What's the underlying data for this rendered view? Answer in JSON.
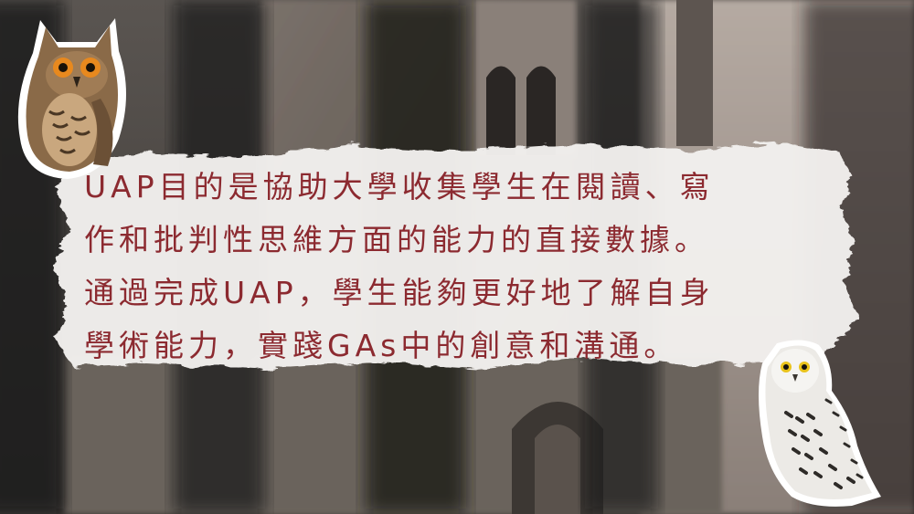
{
  "caption": {
    "lines": [
      "UAP目的是協助大學收集學生在閱讀、寫",
      "作和批判性思維方面的能力的直接數據。",
      "通過完成UAP，學生能夠更好地了解自身",
      "學術能力，實踐GAs中的創意和溝通。"
    ]
  },
  "colors": {
    "text": "#8c2a30",
    "brush": "#f2f0ee",
    "stone": "#6e6660"
  },
  "icons": {
    "top_left": "eagle-owl-icon",
    "bottom_right": "snowy-owl-icon"
  }
}
